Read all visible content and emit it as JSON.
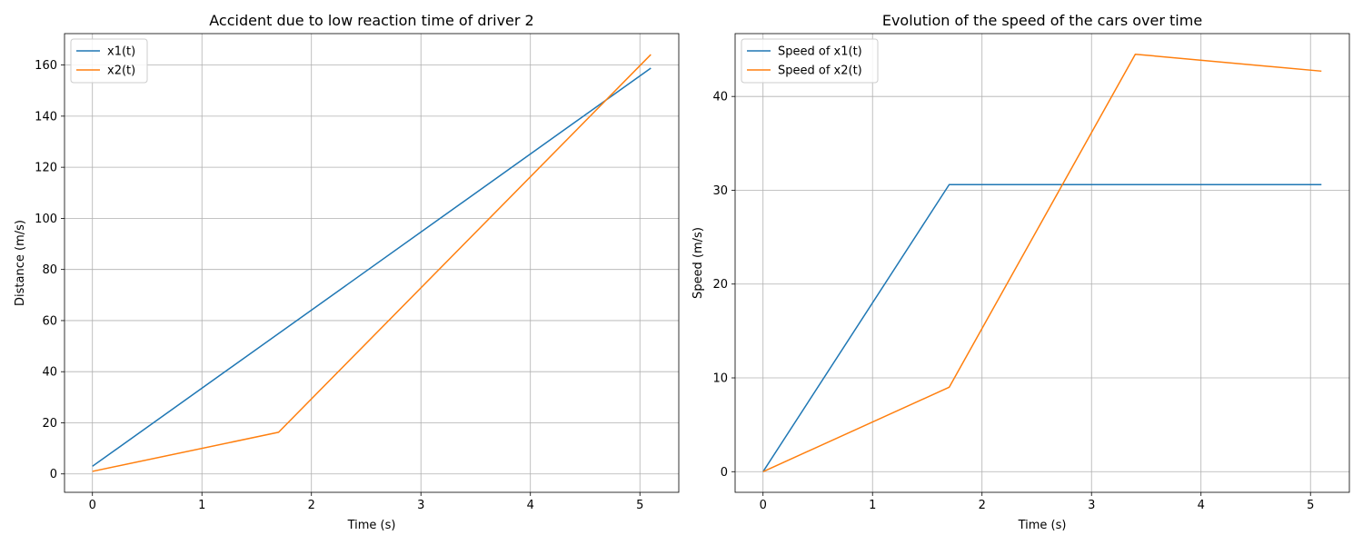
{
  "chart_data": [
    {
      "type": "line",
      "title": "Accident due to low reaction time of driver 2",
      "xlabel": "Time (s)",
      "ylabel": "Distance (m/s)",
      "xlim": [
        -0.255,
        5.355
      ],
      "ylim": [
        -7.2,
        172.3
      ],
      "xticks": [
        0,
        1,
        2,
        3,
        4,
        5
      ],
      "yticks": [
        0,
        20,
        40,
        60,
        80,
        100,
        120,
        140,
        160
      ],
      "grid": true,
      "legend": "upper left",
      "series": [
        {
          "name": "x1(t)",
          "color": "#1f77b4",
          "x": [
            0,
            5.1
          ],
          "y": [
            3,
            158.8
          ]
        },
        {
          "name": "x2(t)",
          "color": "#ff7f0e",
          "x": [
            0,
            1.7,
            5.1
          ],
          "y": [
            1,
            16.3,
            164.1
          ]
        }
      ]
    },
    {
      "type": "line",
      "title": "Evolution of the speed of the cars over time",
      "xlabel": "Time (s)",
      "ylabel": "Speed (m/s)",
      "xlim": [
        -0.255,
        5.355
      ],
      "ylim": [
        -2.2,
        46.7
      ],
      "xticks": [
        0,
        1,
        2,
        3,
        4,
        5
      ],
      "yticks": [
        0,
        10,
        20,
        30,
        40
      ],
      "grid": true,
      "legend": "upper left",
      "series": [
        {
          "name": "Speed of x1(t)",
          "color": "#1f77b4",
          "x": [
            0,
            1.7,
            5.1
          ],
          "y": [
            0,
            30.6,
            30.6
          ]
        },
        {
          "name": "Speed of x2(t)",
          "color": "#ff7f0e",
          "x": [
            0,
            1.7,
            3.4,
            5.1
          ],
          "y": [
            0,
            9,
            44.5,
            42.7
          ]
        }
      ]
    }
  ]
}
